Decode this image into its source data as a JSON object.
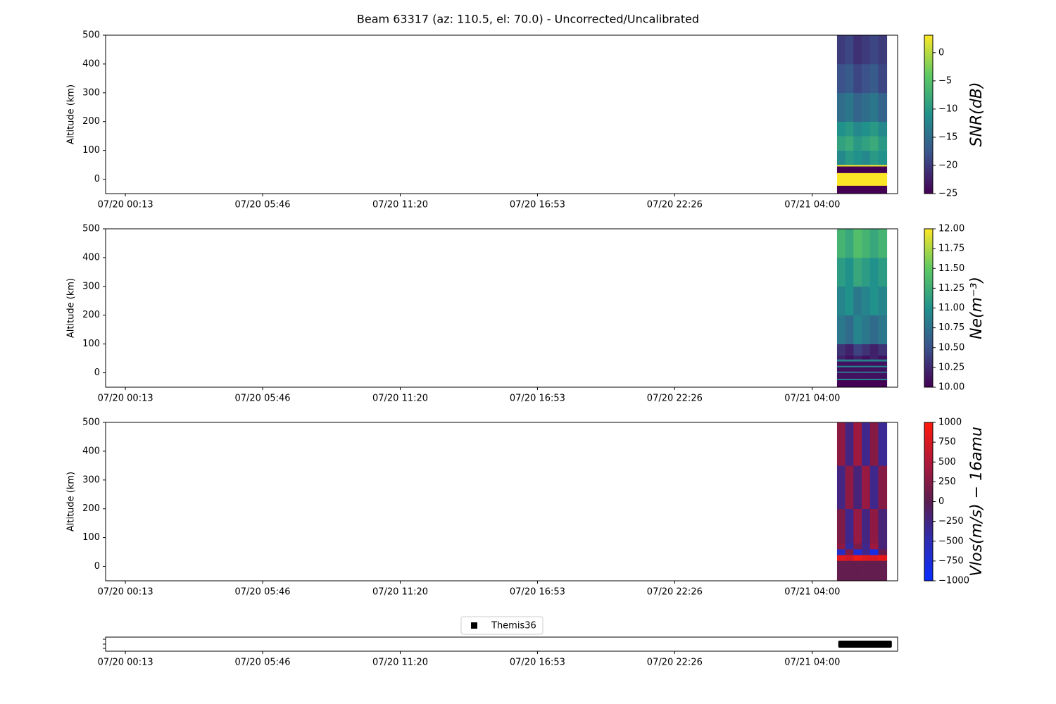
{
  "title": "Beam 63317 (az: 110.5, el: 70.0) - Uncorrected/Uncalibrated",
  "chart_data": [
    {
      "type": "heatmap",
      "ylabel": "Altitude (km)",
      "colorbar_label": "SNR(dB)",
      "xlim": [
        -35,
        1887
      ],
      "xticks": [
        {
          "value": 13,
          "label": "07/20 00:13"
        },
        {
          "value": 346,
          "label": "07/20 05:46"
        },
        {
          "value": 680,
          "label": "07/20 11:20"
        },
        {
          "value": 1013,
          "label": "07/20 16:53"
        },
        {
          "value": 1346,
          "label": "07/20 22:26"
        },
        {
          "value": 1680,
          "label": "07/21 04:00"
        }
      ],
      "ylim": [
        -50,
        500
      ],
      "yticks": [
        0,
        100,
        200,
        300,
        400,
        500
      ],
      "x_edges": [
        1740,
        1760,
        1780,
        1800,
        1820,
        1840,
        1861
      ],
      "y_edges": [
        -50,
        -22,
        22,
        45,
        50,
        100,
        150,
        200,
        300,
        400,
        500
      ],
      "z": [
        [
          -25,
          -25,
          -25,
          -25,
          -25,
          -25
        ],
        [
          3,
          3,
          3,
          3,
          3,
          3
        ],
        [
          -25,
          -25,
          -25,
          -25,
          -25,
          -25
        ],
        [
          3,
          3,
          3,
          3,
          3,
          3
        ],
        [
          -12,
          -10,
          -11,
          -12,
          -10,
          -11
        ],
        [
          -9,
          -8,
          -10,
          -9,
          -8,
          -10
        ],
        [
          -11,
          -10,
          -12,
          -11,
          -10,
          -12
        ],
        [
          -15,
          -14,
          -16,
          -15,
          -14,
          -16
        ],
        [
          -18,
          -17,
          -19,
          -18,
          -17,
          -19
        ],
        [
          -20,
          -19,
          -21,
          -20,
          -19,
          -20
        ]
      ],
      "clim": [
        -25,
        3.1
      ],
      "colormap": [
        "#440154",
        "#3b528b",
        "#21918c",
        "#5ec962",
        "#fde725"
      ],
      "cticks": [
        {
          "value": -25,
          "label": "−25"
        },
        {
          "value": -20,
          "label": "−20"
        },
        {
          "value": -15,
          "label": "−15"
        },
        {
          "value": -10,
          "label": "−10"
        },
        {
          "value": -5,
          "label": "−5"
        },
        0
      ]
    },
    {
      "type": "heatmap",
      "ylabel": "Altitude (km)",
      "colorbar_label": "Ne(m⁻³)",
      "xlim": [
        -35,
        1887
      ],
      "xticks": [
        {
          "value": 13,
          "label": "07/20 00:13"
        },
        {
          "value": 346,
          "label": "07/20 05:46"
        },
        {
          "value": 680,
          "label": "07/20 11:20"
        },
        {
          "value": 1013,
          "label": "07/20 16:53"
        },
        {
          "value": 1346,
          "label": "07/20 22:26"
        },
        {
          "value": 1680,
          "label": "07/21 04:00"
        }
      ],
      "ylim": [
        -50,
        500
      ],
      "yticks": [
        0,
        100,
        200,
        300,
        400,
        500
      ],
      "x_edges": [
        1740,
        1760,
        1780,
        1800,
        1820,
        1840,
        1861
      ],
      "y_edges": [
        -50,
        -25,
        -20,
        0,
        5,
        20,
        25,
        40,
        47,
        60,
        100,
        200,
        300,
        400,
        500
      ],
      "z": [
        [
          10.0,
          10.0,
          10.0,
          10.0,
          10.0,
          10.0
        ],
        [
          10.9,
          10.9,
          10.9,
          10.9,
          10.9,
          10.9
        ],
        [
          10.1,
          10.1,
          10.1,
          10.1,
          10.1,
          10.1
        ],
        [
          10.7,
          10.7,
          10.7,
          10.7,
          10.7,
          10.7
        ],
        [
          10.1,
          10.1,
          10.1,
          10.1,
          10.1,
          10.1
        ],
        [
          10.9,
          10.9,
          10.9,
          10.9,
          10.9,
          10.9
        ],
        [
          10.1,
          10.1,
          10.1,
          10.1,
          10.1,
          10.1
        ],
        [
          10.9,
          10.9,
          10.9,
          10.9,
          10.9,
          10.9
        ],
        [
          10.2,
          10.1,
          10.2,
          10.1,
          10.2,
          10.1
        ],
        [
          10.3,
          10.2,
          10.4,
          10.3,
          10.2,
          10.3
        ],
        [
          10.8,
          10.7,
          10.9,
          10.8,
          10.7,
          10.8
        ],
        [
          10.9,
          11.0,
          10.8,
          10.9,
          11.0,
          10.9
        ],
        [
          11.1,
          11.0,
          11.2,
          11.1,
          11.0,
          11.1
        ],
        [
          11.3,
          11.2,
          11.4,
          11.3,
          11.2,
          11.3
        ]
      ],
      "clim": [
        10,
        12
      ],
      "colormap": [
        "#440154",
        "#3b528b",
        "#21918c",
        "#5ec962",
        "#fde725"
      ],
      "cticks": [
        {
          "value": 10,
          "label": "10.00"
        },
        10.25,
        {
          "value": 10.5,
          "label": "10.50"
        },
        10.75,
        {
          "value": 11,
          "label": "11.00"
        },
        11.25,
        {
          "value": 11.5,
          "label": "11.50"
        },
        11.75,
        {
          "value": 12,
          "label": "12.00"
        }
      ]
    },
    {
      "type": "heatmap",
      "ylabel": "Altitude (km)",
      "colorbar_label": "Vlos(m/s) − 16amu",
      "xlim": [
        -35,
        1887
      ],
      "xticks": [
        {
          "value": 13,
          "label": "07/20 00:13"
        },
        {
          "value": 346,
          "label": "07/20 05:46"
        },
        {
          "value": 680,
          "label": "07/20 11:20"
        },
        {
          "value": 1013,
          "label": "07/20 16:53"
        },
        {
          "value": 1346,
          "label": "07/20 22:26"
        },
        {
          "value": 1680,
          "label": "07/21 04:00"
        }
      ],
      "ylim": [
        -50,
        500
      ],
      "yticks": [
        0,
        100,
        200,
        300,
        400,
        500
      ],
      "x_edges": [
        1740,
        1760,
        1780,
        1800,
        1820,
        1840,
        1861
      ],
      "y_edges": [
        -50,
        20,
        40,
        60,
        80,
        200,
        350,
        500
      ],
      "z": [
        [
          50,
          50,
          50,
          50,
          50,
          50
        ],
        [
          800,
          700,
          900,
          800,
          750,
          850
        ],
        [
          -600,
          200,
          -700,
          -300,
          -800,
          100
        ],
        [
          300,
          -400,
          200,
          -300,
          400,
          -200
        ],
        [
          200,
          -300,
          350,
          -250,
          300,
          -200
        ],
        [
          -250,
          300,
          -200,
          350,
          -300,
          250
        ],
        [
          300,
          -250,
          400,
          -300,
          250,
          -350
        ]
      ],
      "clim": [
        -1000,
        1000
      ],
      "colormap": [
        "#0a2dff",
        "#2d2db4",
        "#5a1e50",
        "#b0183a",
        "#ff1a0a"
      ],
      "cticks": [
        {
          "value": -1000,
          "label": "−1000"
        },
        {
          "value": -750,
          "label": "−750"
        },
        {
          "value": -500,
          "label": "−500"
        },
        {
          "value": -250,
          "label": "−250"
        },
        0,
        250,
        500,
        750,
        1000
      ]
    },
    {
      "type": "timeline",
      "xlim": [
        -35,
        1887
      ],
      "xticks": [
        {
          "value": 13,
          "label": "07/20 00:13"
        },
        {
          "value": 346,
          "label": "07/20 05:46"
        },
        {
          "value": 680,
          "label": "07/20 11:20"
        },
        {
          "value": 1013,
          "label": "07/20 16:53"
        },
        {
          "value": 1346,
          "label": "07/20 22:26"
        },
        {
          "value": 1680,
          "label": "07/21 04:00"
        }
      ],
      "series": [
        {
          "name": "Themis36",
          "color": "#000000",
          "x": [
            1743,
            1873
          ]
        }
      ]
    }
  ]
}
